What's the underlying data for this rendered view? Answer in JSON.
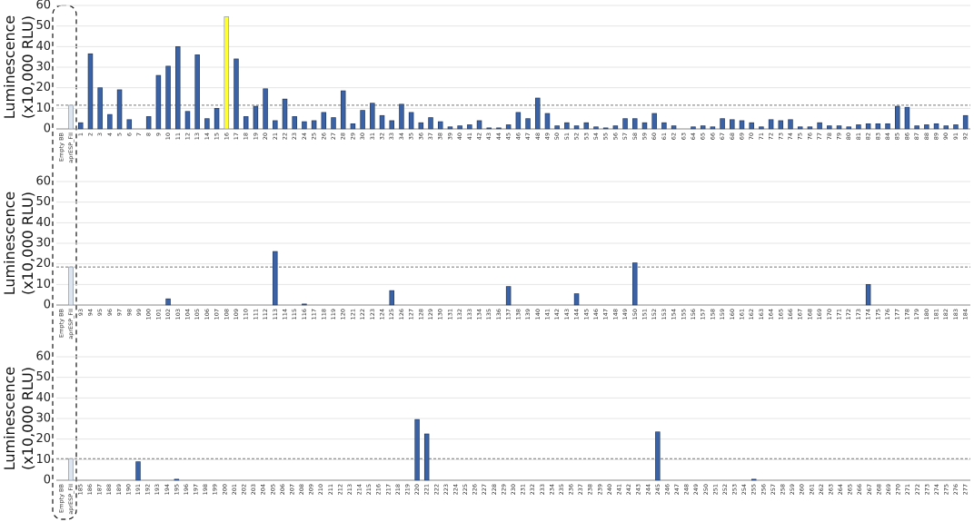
{
  "chart_data": [
    {
      "type": "bar",
      "ylabel": [
        "Luminescence",
        "(x10,000 RLU)"
      ],
      "ylim": [
        0,
        60
      ],
      "yticks": [
        0,
        10,
        20,
        30,
        40,
        50,
        60
      ],
      "threshold": 11.5,
      "grid": true,
      "color": "#3c62a6",
      "point_colors": {
        "0": "#dde6f0",
        "1": "#dde6f0",
        "17": "#ffff33"
      },
      "categories": [
        "Empty BB",
        "aprESP_FII",
        "1",
        "2",
        "3",
        "4",
        "5",
        "6",
        "7",
        "8",
        "9",
        "10",
        "11",
        "12",
        "13",
        "14",
        "15",
        "16",
        "17",
        "18",
        "19",
        "20",
        "21",
        "22",
        "23",
        "24",
        "25",
        "26",
        "27",
        "28",
        "29",
        "30",
        "31",
        "32",
        "33",
        "34",
        "35",
        "36",
        "37",
        "38",
        "39",
        "40",
        "41",
        "42",
        "43",
        "44",
        "45",
        "46",
        "47",
        "48",
        "49",
        "50",
        "51",
        "52",
        "53",
        "54",
        "55",
        "56",
        "57",
        "58",
        "59",
        "60",
        "61",
        "62",
        "63",
        "64",
        "65",
        "66",
        "67",
        "68",
        "69",
        "70",
        "71",
        "72",
        "73",
        "74",
        "75",
        "76",
        "77",
        "78",
        "79",
        "80",
        "81",
        "82",
        "83",
        "84",
        "85",
        "86",
        "87",
        "88",
        "89",
        "90",
        "91",
        "92"
      ],
      "values": [
        0,
        11.5,
        3,
        36.5,
        20,
        7,
        19,
        4.5,
        0,
        6,
        26,
        30.5,
        40,
        8.5,
        36,
        5,
        10,
        54.5,
        34,
        6,
        11,
        19.5,
        4,
        14.5,
        6,
        3.5,
        4,
        8,
        5.5,
        18.5,
        2.5,
        9,
        12.5,
        6.5,
        4,
        12,
        8,
        3,
        5.5,
        3.5,
        1,
        1.5,
        2,
        4,
        0.5,
        0.5,
        2,
        8,
        5,
        15,
        7.5,
        1.5,
        3,
        1.5,
        3,
        1,
        0.5,
        1.5,
        5,
        5,
        3,
        7.5,
        3,
        1.5,
        0,
        1,
        1.5,
        1,
        5,
        4.5,
        4,
        3,
        1,
        4.5,
        4,
        4.5,
        1,
        1,
        3,
        1.5,
        1.5,
        1,
        2,
        2.5,
        2.5,
        2.5,
        11,
        10.5,
        1.5,
        2,
        2.5,
        1.5,
        2,
        6.5
      ]
    },
    {
      "type": "bar",
      "ylabel": [
        "Luminescence",
        "(x10,000 RLU)"
      ],
      "ylim": [
        0,
        60
      ],
      "yticks": [
        0,
        10,
        20,
        30,
        40,
        50,
        60
      ],
      "threshold": 18.5,
      "grid": true,
      "color": "#3c62a6",
      "point_colors": {
        "0": "#dde6f0",
        "1": "#dde6f0"
      },
      "categories": [
        "Empty BB",
        "aprESP_FII",
        "93",
        "94",
        "95",
        "96",
        "97",
        "98",
        "99",
        "100",
        "101",
        "102",
        "103",
        "104",
        "105",
        "106",
        "107",
        "108",
        "109",
        "110",
        "111",
        "112",
        "113",
        "114",
        "115",
        "116",
        "117",
        "118",
        "119",
        "120",
        "121",
        "122",
        "123",
        "124",
        "125",
        "126",
        "127",
        "128",
        "129",
        "130",
        "131",
        "132",
        "133",
        "134",
        "135",
        "136",
        "137",
        "138",
        "139",
        "140",
        "141",
        "142",
        "143",
        "144",
        "145",
        "146",
        "147",
        "148",
        "149",
        "150",
        "151",
        "152",
        "153",
        "154",
        "155",
        "156",
        "157",
        "158",
        "159",
        "160",
        "161",
        "162",
        "163",
        "164",
        "165",
        "166",
        "167",
        "168",
        "169",
        "170",
        "171",
        "172",
        "173",
        "174",
        "175",
        "176",
        "177",
        "178",
        "179",
        "180",
        "181",
        "182",
        "183",
        "184"
      ],
      "values": [
        0,
        18.5,
        0,
        0,
        0,
        0,
        0,
        0,
        0,
        0,
        0,
        3,
        0,
        0,
        0,
        0,
        0,
        0,
        0,
        0,
        0,
        0,
        26,
        0,
        0,
        0.5,
        0,
        0,
        0,
        0,
        0,
        0,
        0,
        0,
        7,
        0,
        0,
        0,
        0,
        0,
        0,
        0,
        0,
        0,
        0,
        0,
        9,
        0,
        0,
        0,
        0,
        0,
        0,
        5.5,
        0,
        0,
        0,
        0,
        0,
        20.5,
        0,
        0,
        0,
        0,
        0,
        0,
        0,
        0,
        0,
        0,
        0,
        0,
        0,
        0,
        0,
        0,
        0,
        0,
        0,
        0,
        0,
        0,
        0,
        10,
        0,
        0,
        0,
        0,
        0,
        0,
        0,
        0,
        0,
        0
      ]
    },
    {
      "type": "bar",
      "ylabel": [
        "Luminescence",
        "(x10,000 RLU)"
      ],
      "ylim": [
        0,
        60
      ],
      "yticks": [
        0,
        10,
        20,
        30,
        40,
        50,
        60
      ],
      "threshold": 10.5,
      "grid": true,
      "color": "#3c62a6",
      "point_colors": {
        "0": "#dde6f0",
        "1": "#dde6f0"
      },
      "categories": [
        "Empty BB",
        "aprESP_FII",
        "185",
        "186",
        "187",
        "188",
        "189",
        "190",
        "191",
        "192",
        "193",
        "194",
        "195",
        "196",
        "197",
        "198",
        "199",
        "200",
        "201",
        "202",
        "203",
        "204",
        "205",
        "206",
        "207",
        "208",
        "209",
        "210",
        "211",
        "212",
        "213",
        "214",
        "215",
        "216",
        "217",
        "218",
        "219",
        "220",
        "221",
        "222",
        "223",
        "224",
        "225",
        "226",
        "227",
        "228",
        "229",
        "230",
        "231",
        "232",
        "233",
        "234",
        "235",
        "236",
        "237",
        "238",
        "239",
        "240",
        "241",
        "242",
        "243",
        "244",
        "245",
        "246",
        "247",
        "248",
        "249",
        "250",
        "251",
        "252",
        "253",
        "254",
        "255",
        "256",
        "257",
        "258",
        "259",
        "260",
        "261",
        "262",
        "263",
        "264",
        "265",
        "266",
        "267",
        "268",
        "269",
        "270",
        "271",
        "272",
        "273",
        "274",
        "275",
        "276",
        "277"
      ],
      "values": [
        0,
        10.5,
        0,
        0,
        0,
        0,
        0,
        0,
        9,
        0,
        0,
        0,
        0.5,
        0,
        0,
        0,
        0,
        0,
        0,
        0,
        0,
        0,
        0,
        0,
        0,
        0,
        0,
        0,
        0,
        0,
        0,
        0,
        0,
        0,
        0,
        0,
        0,
        29.5,
        22.5,
        0,
        0,
        0,
        0,
        0,
        0,
        0,
        0,
        0,
        0,
        0,
        0,
        0,
        0,
        0,
        0,
        0,
        0,
        0,
        0,
        0,
        0,
        0,
        23.5,
        0,
        0,
        0,
        0,
        0,
        0,
        0,
        0,
        0,
        0.5,
        0,
        0,
        0,
        0,
        0,
        0,
        0,
        0,
        0,
        0,
        0,
        0,
        0,
        0,
        0,
        0,
        0,
        0,
        0,
        0,
        0,
        0
      ]
    }
  ]
}
